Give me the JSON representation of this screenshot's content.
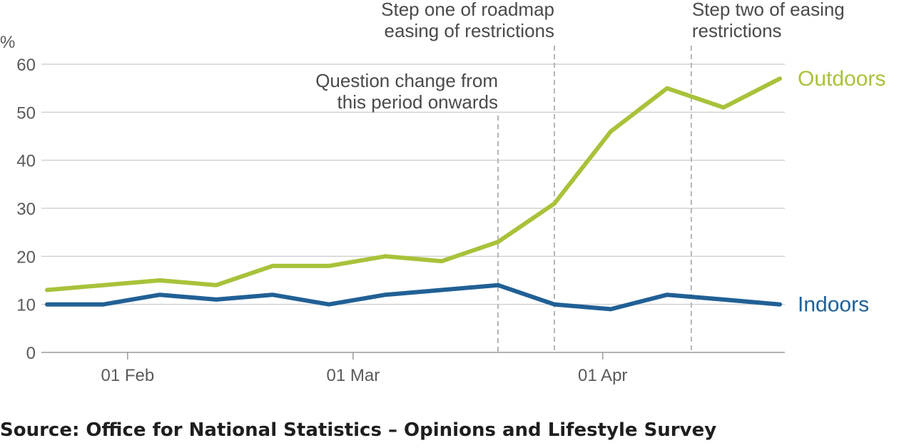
{
  "chart_data": {
    "type": "line",
    "ylabel": "%",
    "ylim": [
      0,
      60
    ],
    "yticks": [
      "0",
      "10",
      "20",
      "30",
      "40",
      "50",
      "60"
    ],
    "x": [
      "2021-01-22",
      "2021-01-29",
      "2021-02-05",
      "2021-02-12",
      "2021-02-19",
      "2021-02-26",
      "2021-03-05",
      "2021-03-12",
      "2021-03-19",
      "2021-03-26",
      "2021-04-02",
      "2021-04-09",
      "2021-04-16",
      "2021-04-23"
    ],
    "xticks": [
      {
        "date": "2021-02-01",
        "label": "01 Feb"
      },
      {
        "date": "2021-03-01",
        "label": "01 Mar"
      },
      {
        "date": "2021-04-01",
        "label": "01 Apr"
      }
    ],
    "series": [
      {
        "name": "Outdoors",
        "color": "#a8c23a",
        "values": [
          13,
          14,
          15,
          14,
          18,
          18,
          20,
          19,
          23,
          31,
          46,
          55,
          51,
          57
        ]
      },
      {
        "name": "Indoors",
        "color": "#206095",
        "values": [
          10,
          10,
          12,
          11,
          12,
          10,
          12,
          13,
          14,
          10,
          9,
          12,
          11,
          10
        ]
      }
    ],
    "annotations": [
      {
        "date": "2021-03-19",
        "lines": [
          "Question change from",
          "this period onwards"
        ]
      },
      {
        "date": "2021-03-26",
        "lines": [
          "Step one of roadmap",
          "easing of restrictions"
        ]
      },
      {
        "date": "2021-04-12",
        "lines": [
          "Step two of easing",
          "restrictions"
        ]
      }
    ],
    "grid": true
  },
  "source": "Source: Office for National Statistics – Opinions and Lifestyle Survey"
}
